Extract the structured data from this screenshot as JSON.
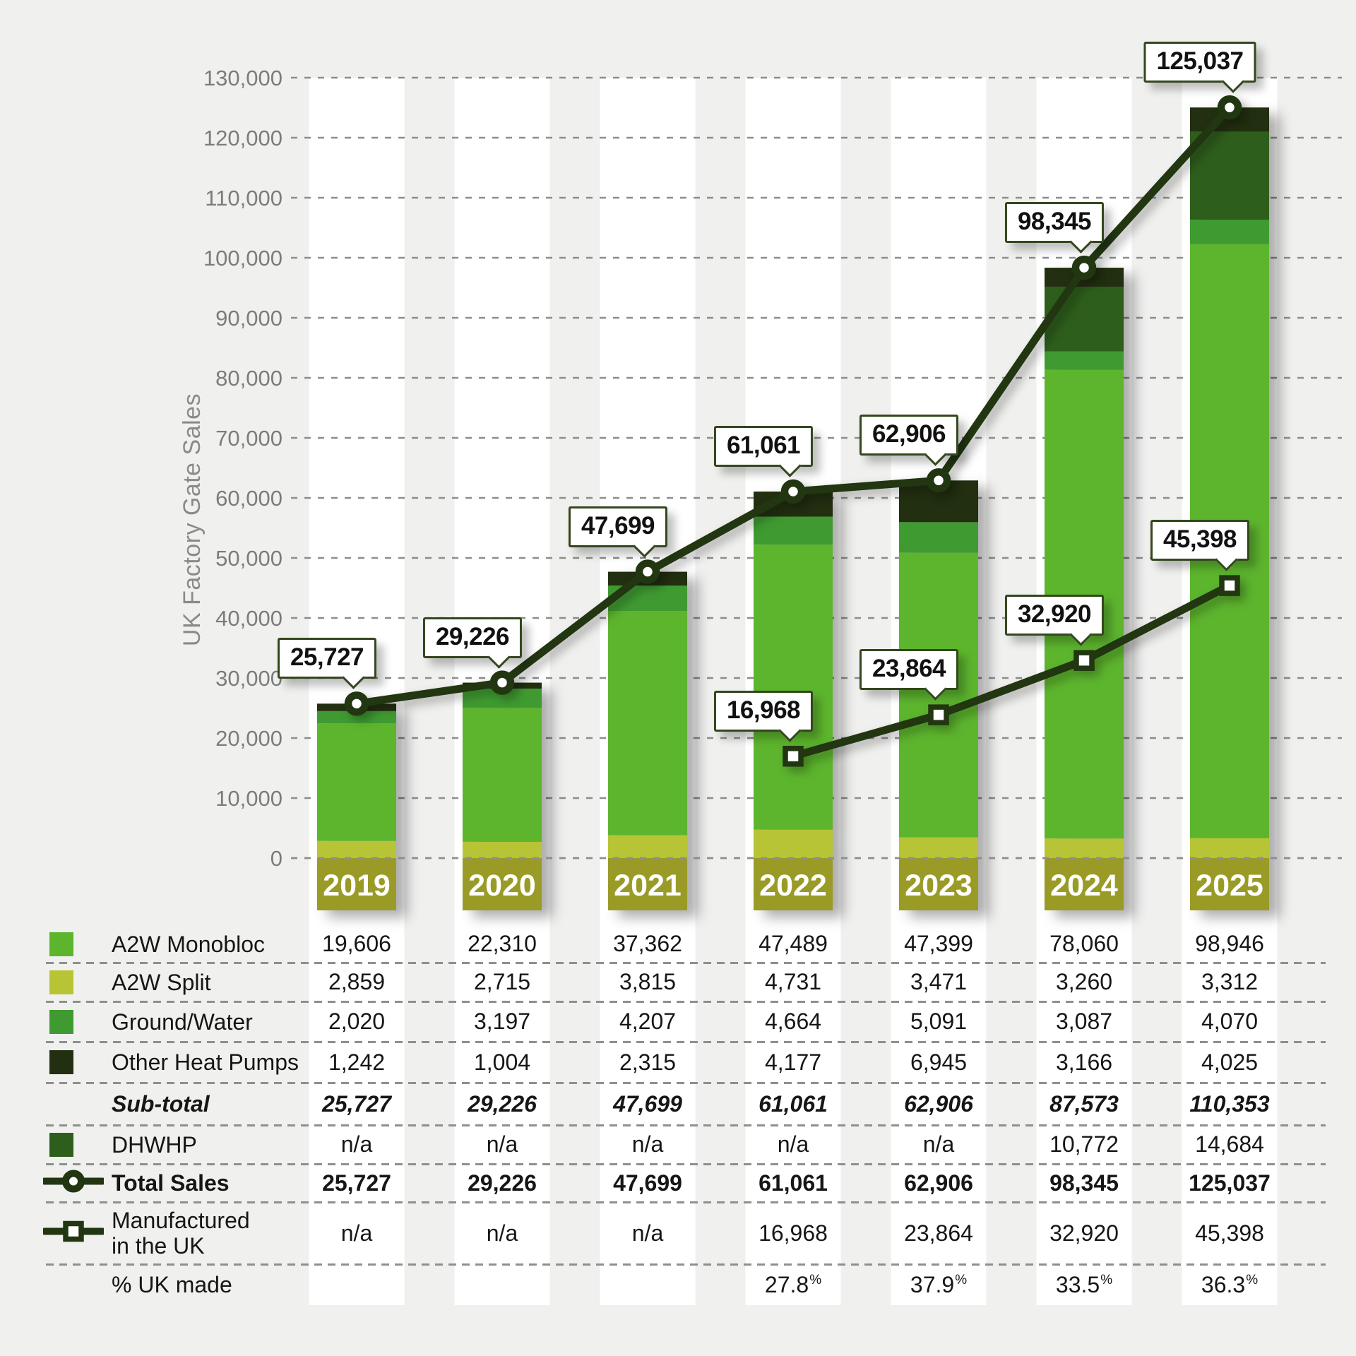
{
  "y_axis": {
    "title": "UK Factory Gate Sales",
    "tick_labels": [
      "0",
      "10,000",
      "20,000",
      "30,000",
      "40,000",
      "50,000",
      "60,000",
      "70,000",
      "80,000",
      "90,000",
      "100,000",
      "110,000",
      "120,000",
      "130,000"
    ]
  },
  "colors": {
    "background": "#f0f0ef",
    "column_stripe": "#ffffff",
    "gridline": "#8d8d8d",
    "axis_text": "#7c7c7c",
    "line": "#213611",
    "callout_border": "#34471d",
    "year_band": "#9a9b26",
    "year_text": "#ffffff",
    "a2w_monobloc": "#5db52e",
    "a2w_split": "#b7c436",
    "ground_water": "#3f9b31",
    "other_heat_pumps": "#222f10",
    "dhwhp": "#2e5e1c"
  },
  "chart_data": {
    "type": "bar",
    "subtype": "stacked bars with two line overlays",
    "title": "",
    "xlabel": "",
    "ylabel": "UK Factory Gate Sales",
    "ylim": [
      0,
      130000
    ],
    "grid": "dashed horizontal",
    "categories": [
      "2019",
      "2020",
      "2021",
      "2022",
      "2023",
      "2024",
      "2025"
    ],
    "series": [
      {
        "name": "A2W Split",
        "color": "#b7c436",
        "values": [
          2859,
          2715,
          3815,
          4731,
          3471,
          3260,
          3312
        ]
      },
      {
        "name": "A2W Monobloc",
        "color": "#5db52e",
        "values": [
          19606,
          22310,
          37362,
          47489,
          47399,
          78060,
          98946
        ]
      },
      {
        "name": "Ground/Water",
        "color": "#3f9b31",
        "values": [
          2020,
          3197,
          4207,
          4664,
          5091,
          3087,
          4070
        ]
      },
      {
        "name": "DHWHP",
        "color": "#2e5e1c",
        "values": [
          0,
          0,
          0,
          0,
          0,
          10772,
          14684
        ]
      },
      {
        "name": "Other Heat Pumps",
        "color": "#222f10",
        "values": [
          1242,
          1004,
          2315,
          4177,
          6945,
          3166,
          4025
        ]
      }
    ],
    "lines": [
      {
        "name": "Total Sales",
        "marker": "circle",
        "color": "#213611",
        "values": [
          25727,
          29226,
          47699,
          61061,
          62906,
          98345,
          125037
        ],
        "labels": [
          "25,727",
          "29,226",
          "47,699",
          "61,061",
          "62,906",
          "98,345",
          "125,037"
        ]
      },
      {
        "name": "Manufactured in the UK",
        "marker": "square",
        "color": "#213611",
        "values": [
          null,
          null,
          null,
          16968,
          23864,
          32920,
          45398
        ],
        "labels": [
          null,
          null,
          null,
          "16,968",
          "23,864",
          "32,920",
          "45,398"
        ]
      }
    ]
  },
  "table": {
    "columns": [
      "2019",
      "2020",
      "2021",
      "2022",
      "2023",
      "2024",
      "2025"
    ],
    "rows": [
      {
        "label": "A2W Monobloc",
        "marker": "swatch",
        "swatch": "#5db52e",
        "style": "normal",
        "values": [
          "19,606",
          "22,310",
          "37,362",
          "47,489",
          "47,399",
          "78,060",
          "98,946"
        ]
      },
      {
        "label": "A2W Split",
        "marker": "swatch",
        "swatch": "#b7c436",
        "style": "normal",
        "values": [
          "2,859",
          "2,715",
          "3,815",
          "4,731",
          "3,471",
          "3,260",
          "3,312"
        ]
      },
      {
        "label": "Ground/Water",
        "marker": "swatch",
        "swatch": "#3f9b31",
        "style": "normal",
        "values": [
          "2,020",
          "3,197",
          "4,207",
          "4,664",
          "5,091",
          "3,087",
          "4,070"
        ]
      },
      {
        "label": "Other Heat Pumps",
        "marker": "swatch",
        "swatch": "#222f10",
        "style": "normal",
        "values": [
          "1,242",
          "1,004",
          "2,315",
          "4,177",
          "6,945",
          "3,166",
          "4,025"
        ]
      },
      {
        "label": "Sub-total",
        "marker": "none",
        "style": "subtotal",
        "values": [
          "25,727",
          "29,226",
          "47,699",
          "61,061",
          "62,906",
          "87,573",
          "110,353"
        ]
      },
      {
        "label": "DHWHP",
        "marker": "swatch",
        "swatch": "#2e5e1c",
        "style": "normal",
        "values": [
          "n/a",
          "n/a",
          "n/a",
          "n/a",
          "n/a",
          "10,772",
          "14,684"
        ]
      },
      {
        "label": "Total Sales",
        "marker": "line-circle",
        "style": "bold",
        "values": [
          "25,727",
          "29,226",
          "47,699",
          "61,061",
          "62,906",
          "98,345",
          "125,037"
        ]
      },
      {
        "label": "Manufactured\nin the UK",
        "marker": "line-square",
        "style": "normal",
        "values": [
          "n/a",
          "n/a",
          "n/a",
          "16,968",
          "23,864",
          "32,920",
          "45,398"
        ]
      },
      {
        "label": "% UK made",
        "marker": "none",
        "style": "percent",
        "values": [
          "",
          "",
          "",
          "27.8",
          "37.9",
          "33.5",
          "36.3"
        ]
      }
    ]
  }
}
